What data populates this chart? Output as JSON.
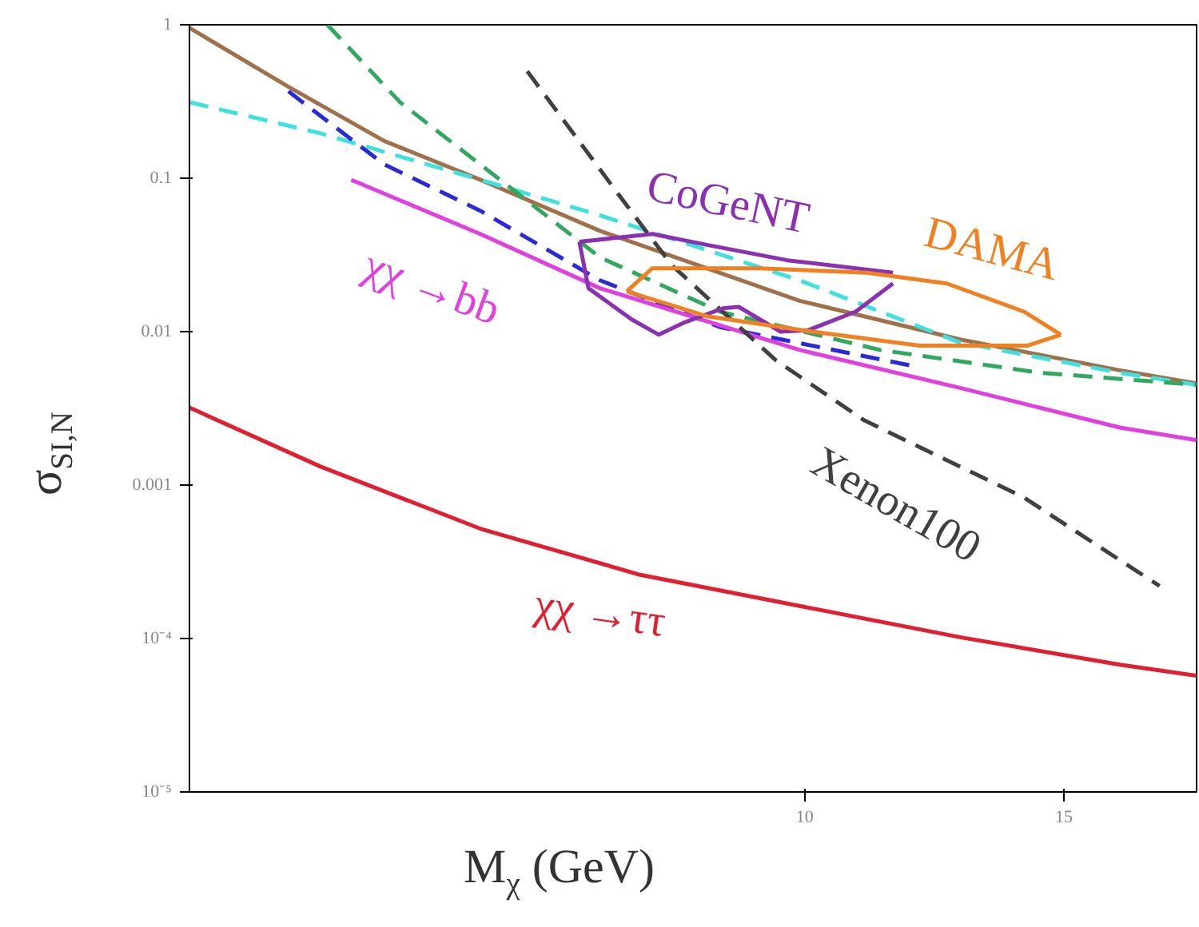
{
  "chart_data": {
    "type": "line",
    "xlabel": "M$_{χ}$ (GeV)",
    "ylabel": "σ$_{SI,N}$",
    "log": "xy",
    "grid": false,
    "marker": "none",
    "xlim": [
      3.82,
      18.46
    ],
    "ylim": [
      1e-05,
      1
    ],
    "xticks": [
      10,
      15
    ],
    "yticks": [
      1,
      0.1,
      0.01,
      0.001,
      {
        "value": 0.0001,
        "label": "10⁻⁴"
      },
      {
        "value": 1e-05,
        "label": "10⁻⁵"
      }
    ],
    "series": [
      {
        "color": "#a0704a",
        "line_style": "solid",
        "x": [
          3.82,
          4.46,
          5.18,
          6.02,
          7.26,
          9.92,
          12.75,
          16.37,
          18.46
        ],
        "values": [
          0.955,
          0.394,
          0.175,
          0.0977,
          0.0454,
          0.0159,
          0.0089,
          0.0056,
          0.0046
        ]
      },
      {
        "color": "#40e0e0",
        "line_style": "dashed",
        "x": [
          3.82,
          4.69,
          6.02,
          7.26,
          9.92,
          12.75,
          16.37,
          18.46
        ],
        "values": [
          0.313,
          0.196,
          0.0977,
          0.0573,
          0.0216,
          0.0085,
          0.0054,
          0.0045
        ]
      },
      {
        "color": "#2a2ad8",
        "line_style": "dashed",
        "x": [
          4.46,
          5.18,
          6.02,
          7.26,
          8.76,
          11.82
        ],
        "values": [
          0.368,
          0.123,
          0.0614,
          0.0216,
          0.0107,
          0.006
        ]
      },
      {
        "color": "#30a860",
        "line_style": "dashed",
        "x": [
          4.74,
          5.31,
          6.02,
          7.26,
          8.76,
          11.25,
          14.45,
          18.46
        ],
        "values": [
          1,
          0.313,
          0.123,
          0.0305,
          0.0135,
          0.0076,
          0.0054,
          0.0045
        ]
      },
      {
        "name": "χχ →bb",
        "color": "#e040e0",
        "line_style": "solid",
        "x": [
          4.92,
          6.02,
          7.26,
          9.92,
          12.75,
          16.37,
          18.46
        ],
        "values": [
          0.0977,
          0.0433,
          0.0192,
          0.0076,
          0.0043,
          0.00237,
          0.00196
        ]
      },
      {
        "name": "χχ →ττ",
        "color": "#e02030",
        "line_style": "solid",
        "x": [
          3.82,
          4.69,
          6.02,
          7.73,
          9.92,
          12.75,
          16.37,
          18.46
        ],
        "values": [
          0.0032,
          0.00132,
          0.00052,
          0.00026,
          0.000163,
          0.000102,
          6.75e-05,
          5.73e-05
        ]
      },
      {
        "name": "Xenon100",
        "color": "#404040",
        "line_style": "dashed",
        "x": [
          6.48,
          7.44,
          8.12,
          9.56,
          10.97,
          14.09,
          17.42
        ],
        "values": [
          0.498,
          0.083,
          0.0272,
          0.0065,
          0.00265,
          0.00083,
          0.00022
        ]
      },
      {
        "name": "CoGeNT",
        "color": "#8a30b0",
        "line_style": "solid",
        "x": [
          7.03,
          7.88,
          8.58,
          9.73,
          11.48
        ],
        "values": [
          0.0385,
          0.0433,
          0.0368,
          0.0292,
          0.0242
        ]
      },
      {
        "color": "#8a30b0",
        "line_style": "solid",
        "x": [
          7.03,
          7.13,
          7.63,
          7.96,
          8.29,
          8.8,
          9.02,
          9.63,
          10.05,
          10.83,
          11.48
        ],
        "values": [
          0.0385,
          0.0192,
          0.012,
          0.00955,
          0.0115,
          0.0142,
          0.0145,
          0.01,
          0.0102,
          0.0135,
          0.0206
        ]
      },
      {
        "name": "DAMA",
        "color": "#f08020",
        "line_style": "solid",
        "x": [
          7.57,
          7.88,
          9.32,
          11.02,
          12.49,
          14.09,
          14.93
        ],
        "values": [
          0.0183,
          0.0259,
          0.0259,
          0.0242,
          0.0206,
          0.0135,
          0.00955
        ]
      },
      {
        "color": "#f08020",
        "line_style": "solid",
        "x": [
          7.57,
          8.58,
          10.12,
          11.97,
          14.16,
          14.93
        ],
        "values": [
          0.0183,
          0.0126,
          0.01,
          0.0081,
          0.0081,
          0.00955
        ]
      }
    ]
  }
}
